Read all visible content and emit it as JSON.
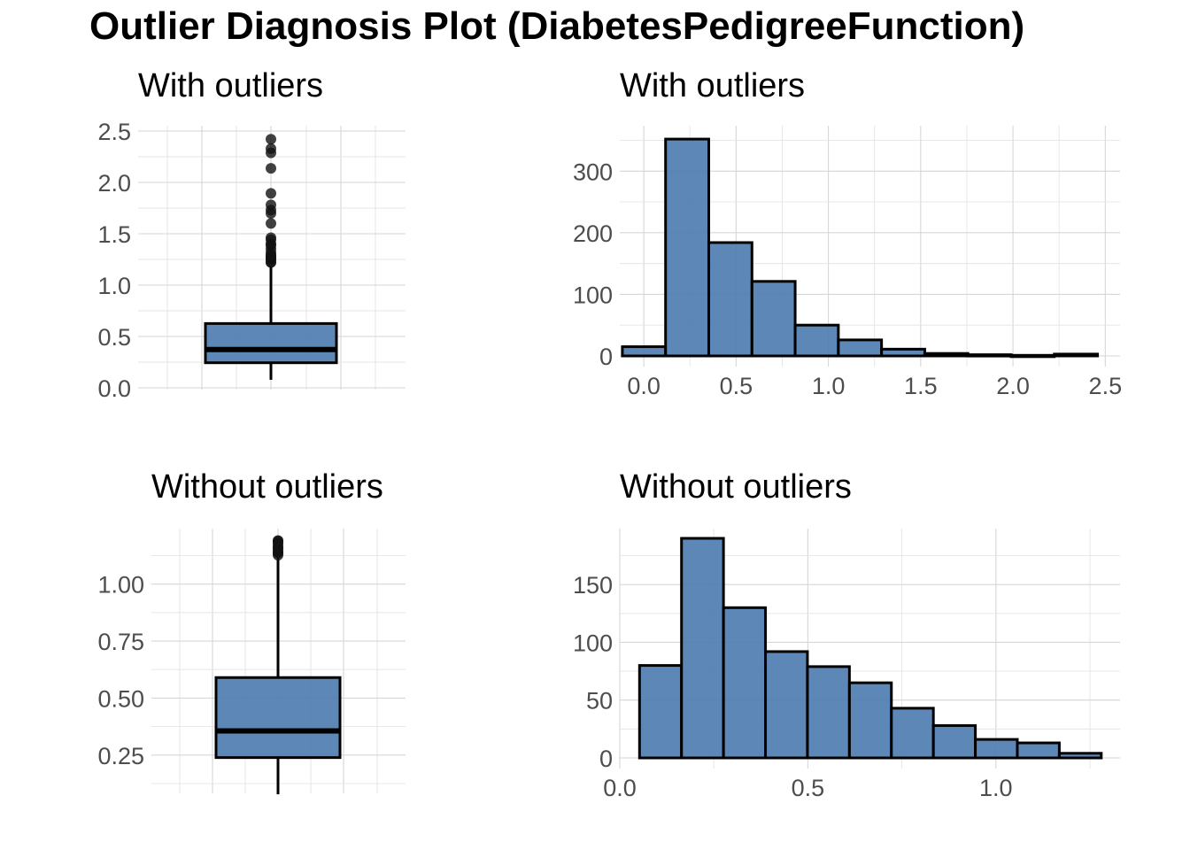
{
  "figure": {
    "title": "Outlier Diagnosis Plot (DiabetesPedigreeFunction)",
    "fill_color": "#4F7DB0",
    "outline_color": "#000000",
    "grid_color": "#d6d6d6",
    "tick_color": "#4d4d4d"
  },
  "chart_data": [
    {
      "type": "boxplot",
      "title": "With outliers",
      "ylim": [
        0,
        2.5
      ],
      "yticks": [
        0.0,
        0.5,
        1.0,
        1.5,
        2.0,
        2.5
      ],
      "ytick_labels": [
        "0.0",
        "0.5",
        "1.0",
        "1.5",
        "2.0",
        "2.5"
      ],
      "grid": true,
      "stats": {
        "min": 0.078,
        "q1": 0.244,
        "median": 0.3725,
        "q3": 0.626,
        "whisker_high": 1.191
      },
      "outliers": [
        1.22,
        1.224,
        1.251,
        1.258,
        1.268,
        1.282,
        1.292,
        1.318,
        1.353,
        1.39,
        1.4,
        1.441,
        1.461,
        1.6,
        1.698,
        1.731,
        1.781,
        1.893,
        2.137,
        2.288,
        2.329,
        2.42
      ]
    },
    {
      "type": "histogram",
      "title": "With outliers",
      "xlim": [
        -0.13,
        2.58
      ],
      "ylim": [
        0,
        355
      ],
      "xticks": [
        0.0,
        0.5,
        1.0,
        1.5,
        2.0,
        2.5
      ],
      "xtick_labels": [
        "0.0",
        "0.5",
        "1.0",
        "1.5",
        "2.0",
        "2.5"
      ],
      "yticks": [
        0,
        100,
        200,
        300
      ],
      "ytick_labels": [
        "0",
        "100",
        "200",
        "300"
      ],
      "grid": true,
      "bins": [
        {
          "x0": -0.116,
          "x1": 0.118,
          "count": 15
        },
        {
          "x0": 0.118,
          "x1": 0.352,
          "count": 352
        },
        {
          "x0": 0.352,
          "x1": 0.586,
          "count": 184
        },
        {
          "x0": 0.586,
          "x1": 0.82,
          "count": 121
        },
        {
          "x0": 0.82,
          "x1": 1.054,
          "count": 50
        },
        {
          "x0": 1.054,
          "x1": 1.288,
          "count": 26
        },
        {
          "x0": 1.288,
          "x1": 1.522,
          "count": 11
        },
        {
          "x0": 1.522,
          "x1": 1.756,
          "count": 4
        },
        {
          "x0": 1.756,
          "x1": 1.99,
          "count": 2
        },
        {
          "x0": 1.99,
          "x1": 2.224,
          "count": 1
        },
        {
          "x0": 2.224,
          "x1": 2.458,
          "count": 3
        }
      ]
    },
    {
      "type": "boxplot",
      "title": "Without outliers",
      "ylim": [
        0.09,
        1.22
      ],
      "yticks": [
        0.25,
        0.5,
        0.75,
        1.0
      ],
      "ytick_labels": [
        "0.25",
        "0.50",
        "0.75",
        "1.00"
      ],
      "grid": true,
      "stats": {
        "min": 0.078,
        "q1": 0.239,
        "median": 0.356,
        "q3": 0.59,
        "whisker_high": 1.114
      },
      "outliers": [
        1.127,
        1.136,
        1.138,
        1.144,
        1.154,
        1.159,
        1.162,
        1.174,
        1.182,
        1.189,
        1.191
      ]
    },
    {
      "type": "histogram",
      "title": "Without outliers",
      "xlim": [
        0.0,
        1.33
      ],
      "ylim": [
        0,
        190
      ],
      "xticks": [
        0.0,
        0.5,
        1.0
      ],
      "xtick_labels": [
        "0.0",
        "0.5",
        "1.0"
      ],
      "yticks": [
        0,
        50,
        100,
        150
      ],
      "ytick_labels": [
        "0",
        "50",
        "100",
        "150"
      ],
      "grid": true,
      "bins": [
        {
          "x0": 0.0525,
          "x1": 0.1641,
          "count": 80
        },
        {
          "x0": 0.1641,
          "x1": 0.2757,
          "count": 190
        },
        {
          "x0": 0.2757,
          "x1": 0.3873,
          "count": 130
        },
        {
          "x0": 0.3873,
          "x1": 0.4989,
          "count": 92
        },
        {
          "x0": 0.4989,
          "x1": 0.6105,
          "count": 79
        },
        {
          "x0": 0.6105,
          "x1": 0.7221,
          "count": 65
        },
        {
          "x0": 0.7221,
          "x1": 0.8337,
          "count": 43
        },
        {
          "x0": 0.8337,
          "x1": 0.9453,
          "count": 28
        },
        {
          "x0": 0.9453,
          "x1": 1.0569,
          "count": 16
        },
        {
          "x0": 1.0569,
          "x1": 1.1685,
          "count": 13
        },
        {
          "x0": 1.1685,
          "x1": 1.2801,
          "count": 4
        }
      ]
    }
  ]
}
